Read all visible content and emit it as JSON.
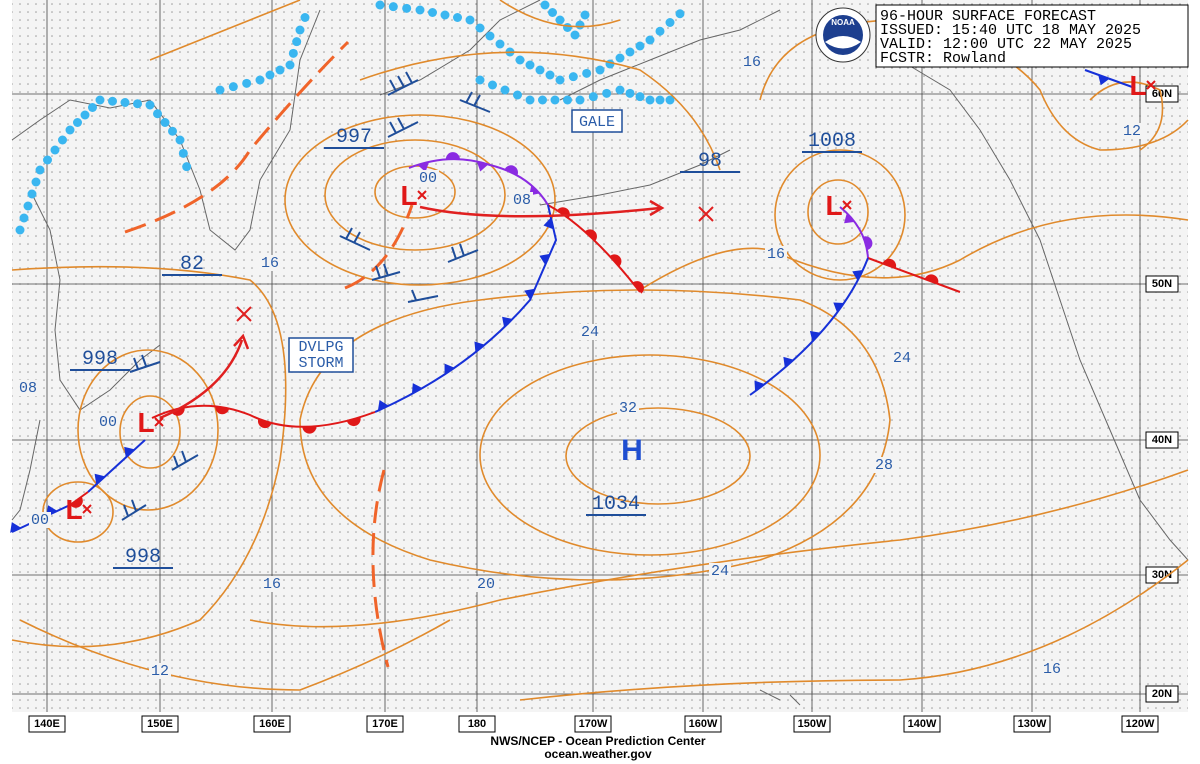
{
  "header": {
    "title": "96-HOUR SURFACE FORECAST",
    "issued": "ISSUED: 15:40 UTC 18 MAY 2025",
    "valid": "VALID:  12:00 UTC 22 MAY 2025",
    "forecaster": "FCSTR: Rowland"
  },
  "logo": "NOAA",
  "longitude_labels": [
    "140E",
    "150E",
    "160E",
    "170E",
    "180",
    "170W",
    "160W",
    "150W",
    "140W",
    "130W",
    "120W"
  ],
  "latitude_labels": [
    "60N",
    "50N",
    "40N",
    "30N",
    "20N"
  ],
  "pressure_labels": [
    "997",
    "1008",
    "98",
    "82",
    "998",
    "998",
    "1034"
  ],
  "isobar_labels": [
    "16",
    "12",
    "16",
    "00",
    "08",
    "16",
    "24",
    "24",
    "32",
    "28",
    "08",
    "00",
    "00",
    "16",
    "20",
    "24",
    "16",
    "12"
  ],
  "high_symbol": "H",
  "low_symbol": "L",
  "annotations": {
    "gale": "GALE",
    "storm": [
      "DVLPG",
      "STORM"
    ]
  },
  "footer": {
    "agency": "NWS/NCEP - Ocean Prediction Center",
    "website": "ocean.weather.gov"
  }
}
